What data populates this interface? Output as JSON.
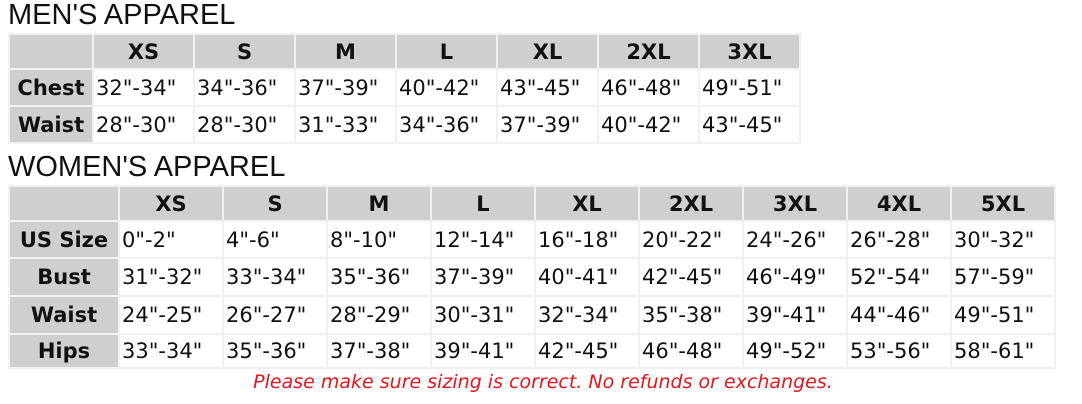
{
  "men": {
    "title": "MEN'S APPAREL",
    "sizes": [
      "XS",
      "S",
      "M",
      "L",
      "XL",
      "2XL",
      "3XL"
    ],
    "rows": [
      {
        "label": "Chest",
        "values": [
          "32\"-34\"",
          "34\"-36\"",
          "37\"-39\"",
          "40\"-42\"",
          "43\"-45\"",
          "46\"-48\"",
          "49\"-51\""
        ]
      },
      {
        "label": "Waist",
        "values": [
          "28\"-30\"",
          "28\"-30\"",
          "31\"-33\"",
          "34\"-36\"",
          "37\"-39\"",
          "40\"-42\"",
          "43\"-45\""
        ]
      }
    ]
  },
  "women": {
    "title": "WOMEN'S APPAREL",
    "sizes": [
      "XS",
      "S",
      "M",
      "L",
      "XL",
      "2XL",
      "3XL",
      "4XL",
      "5XL"
    ],
    "rows": [
      {
        "label": "US Size",
        "values": [
          "0\"-2\"",
          "4\"-6\"",
          "8\"-10\"",
          "12\"-14\"",
          "16\"-18\"",
          "20\"-22\"",
          "24\"-26\"",
          "26\"-28\"",
          "30\"-32\""
        ]
      },
      {
        "label": "Bust",
        "values": [
          "31\"-32\"",
          "33\"-34\"",
          "35\"-36\"",
          "37\"-39\"",
          "40\"-41\"",
          "42\"-45\"",
          "46\"-49\"",
          "52\"-54\"",
          "57\"-59\""
        ]
      },
      {
        "label": "Waist",
        "values": [
          "24\"-25\"",
          "26\"-27\"",
          "28\"-29\"",
          "30\"-31\"",
          "32\"-34\"",
          "35\"-38\"",
          "39\"-41\"",
          "44\"-46\"",
          "49\"-51\""
        ]
      },
      {
        "label": "Hips",
        "values": [
          "33\"-34\"",
          "35\"-36\"",
          "37\"-38\"",
          "39\"-41\"",
          "42\"-45\"",
          "46\"-48\"",
          "49\"-52\"",
          "53\"-56\"",
          "58\"-61\""
        ]
      }
    ]
  },
  "note": "Please make sure sizing is correct. No refunds or exchanges.",
  "colors": {
    "header_bg": "#cfcfcf",
    "note": "#e8141b"
  }
}
